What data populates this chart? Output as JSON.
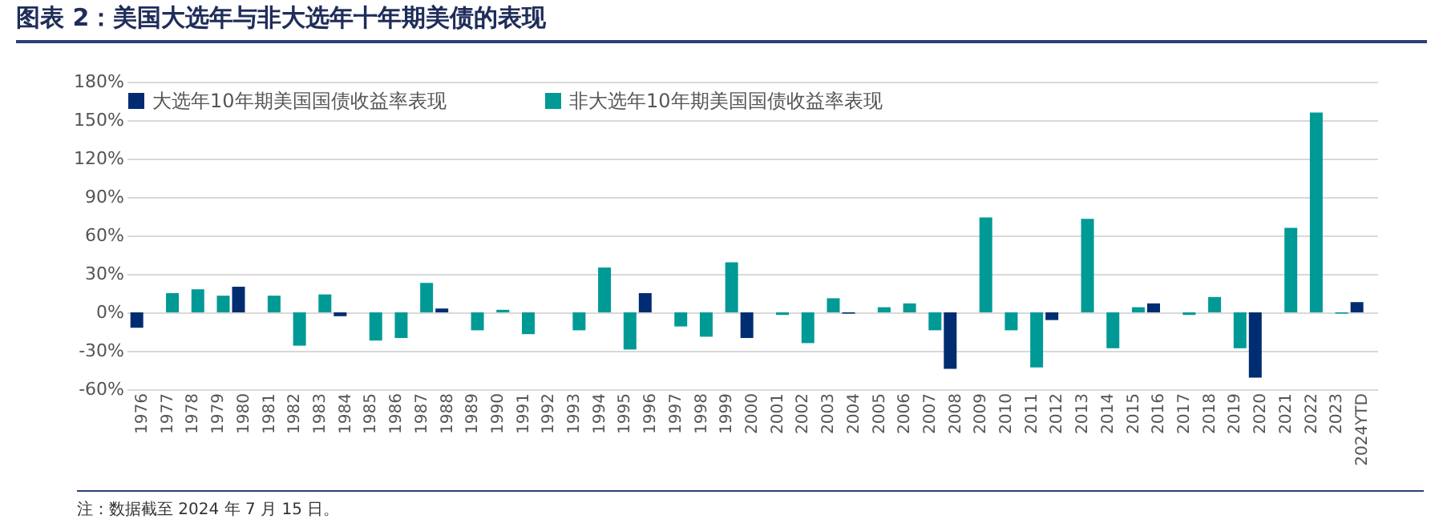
{
  "chart_data": {
    "type": "bar",
    "title": "图表 2：美国大选年与非大选年十年期美债的表现",
    "categories": [
      "1976",
      "1977",
      "1978",
      "1979",
      "1980",
      "1981",
      "1982",
      "1983",
      "1984",
      "1985",
      "1986",
      "1987",
      "1988",
      "1989",
      "1990",
      "1991",
      "1992",
      "1993",
      "1994",
      "1995",
      "1996",
      "1997",
      "1998",
      "1999",
      "2000",
      "2001",
      "2002",
      "2003",
      "2004",
      "2005",
      "2006",
      "2007",
      "2008",
      "2009",
      "2010",
      "2011",
      "2012",
      "2013",
      "2014",
      "2015",
      "2016",
      "2017",
      "2018",
      "2019",
      "2020",
      "2021",
      "2022",
      "2023",
      "2024YTD"
    ],
    "series": [
      {
        "name": "大选年10年期美国国债收益率表现",
        "color": "#002d72",
        "values": [
          -12,
          null,
          null,
          null,
          20,
          null,
          null,
          null,
          -3,
          null,
          null,
          null,
          3,
          null,
          null,
          null,
          0,
          null,
          null,
          null,
          15,
          null,
          null,
          null,
          -20,
          null,
          null,
          null,
          -1,
          null,
          null,
          null,
          -44,
          null,
          null,
          null,
          -6,
          null,
          null,
          null,
          7,
          null,
          null,
          null,
          -51,
          null,
          null,
          null,
          8
        ]
      },
      {
        "name": "非大选年10年期美国国债收益率表现",
        "color": "#009a96",
        "values": [
          null,
          15,
          18,
          13,
          null,
          13,
          -26,
          14,
          null,
          -22,
          -20,
          23,
          null,
          -14,
          2,
          -17,
          null,
          -14,
          35,
          -29,
          null,
          -11,
          -19,
          39,
          null,
          -2,
          -24,
          11,
          null,
          4,
          7,
          -14,
          null,
          74,
          -14,
          -43,
          null,
          73,
          -28,
          4,
          null,
          -2,
          12,
          -28,
          null,
          66,
          156,
          -1,
          null
        ]
      }
    ],
    "ylim": [
      -60,
      180
    ],
    "yticks": [
      {
        "value": -60,
        "label": "-60%"
      },
      {
        "value": -30,
        "label": "-30%"
      },
      {
        "value": 0,
        "label": "0%"
      },
      {
        "value": 30,
        "label": "30%"
      },
      {
        "value": 60,
        "label": "60%"
      },
      {
        "value": 90,
        "label": "90%"
      },
      {
        "value": 120,
        "label": "120%"
      },
      {
        "value": 150,
        "label": "150%"
      },
      {
        "value": 180,
        "label": "180%"
      }
    ],
    "grid": "y",
    "legend": "top",
    "annotations": [
      "注：数据截至 2024 年 7 月 15 日。"
    ]
  }
}
